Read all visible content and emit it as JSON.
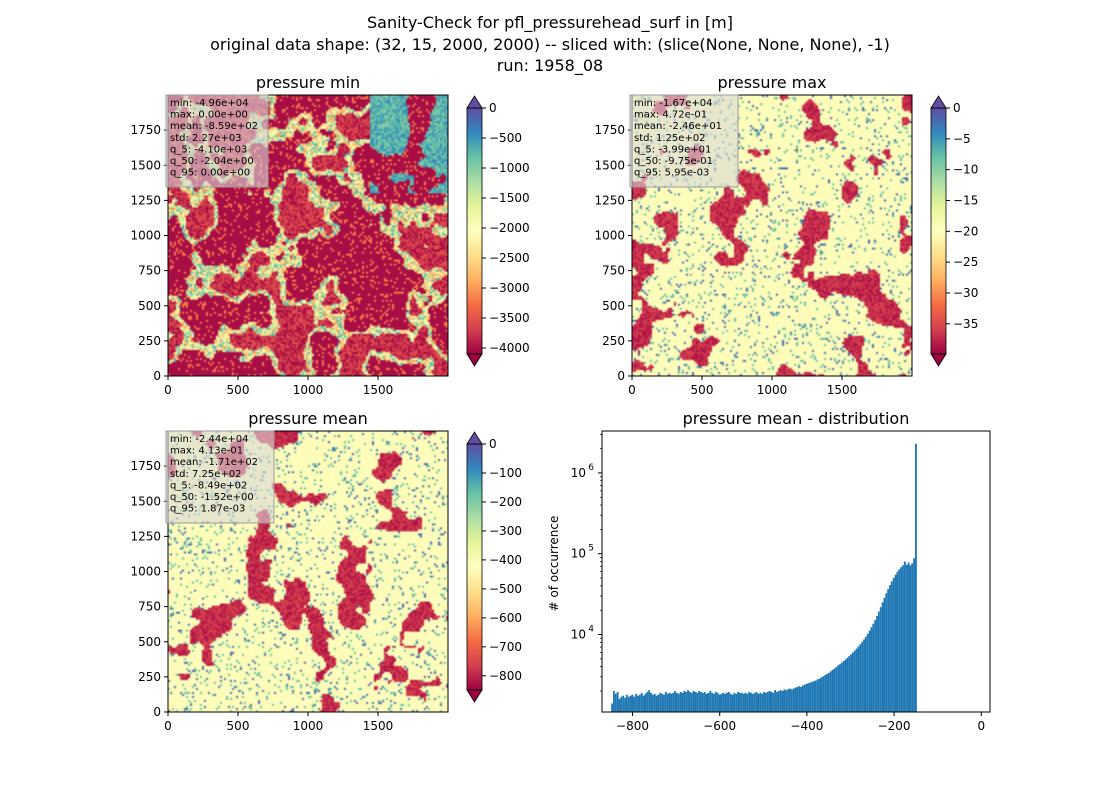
{
  "figure": {
    "title_lines": [
      "Sanity-Check for pfl_pressurehead_surf in [m]",
      "original data shape: (32, 15, 2000, 2000) -- sliced with: (slice(None, None, None), -1)",
      "run: 1958_08"
    ]
  },
  "colors": {
    "spectral_ramp": [
      "#9e0142",
      "#d53e4f",
      "#f46d43",
      "#fdae61",
      "#fee08b",
      "#ffffbf",
      "#e6f598",
      "#abdda4",
      "#66c2a5",
      "#3288bd",
      "#5e4fa2"
    ],
    "hist_bar": "#1f77b4",
    "stats_box_bg": "#d9d9d9"
  },
  "chart_data": [
    {
      "type": "heatmap",
      "title": "pressure min",
      "xlim": [
        0,
        2000
      ],
      "ylim": [
        0,
        2000
      ],
      "xticks": [
        "0",
        "500",
        "1000",
        "1500"
      ],
      "yticks": [
        "0",
        "250",
        "500",
        "750",
        "1000",
        "1250",
        "1500",
        "1750"
      ],
      "colorbar": {
        "range": [
          -4100,
          0
        ],
        "extend": "both",
        "ticks": [
          "0",
          "−500",
          "−1000",
          "−1500",
          "−2000",
          "−2500",
          "−3000",
          "−3500",
          "−4000"
        ]
      },
      "dominant_level": 0.02,
      "stats": [
        "min: -4.96e+04",
        "max: 0.00e+00",
        "mean: -8.59e+02",
        "std: 2.27e+03",
        "q_5: -4.10e+03",
        "q_50: -2.04e+00",
        "q_95: 0.00e+00"
      ]
    },
    {
      "type": "heatmap",
      "title": "pressure max",
      "xlim": [
        0,
        2000
      ],
      "ylim": [
        0,
        2000
      ],
      "xticks": [
        "0",
        "500",
        "1000",
        "1500"
      ],
      "yticks": [
        "0",
        "250",
        "500",
        "750",
        "1000",
        "1250",
        "1500",
        "1750"
      ],
      "colorbar": {
        "range": [
          -39.9,
          0
        ],
        "extend": "both",
        "ticks": [
          "0",
          "−5",
          "−10",
          "−15",
          "−20",
          "−25",
          "−30",
          "−35"
        ]
      },
      "dominant_level": 0.5,
      "stats": [
        "min: -1.67e+04",
        "max: 4.72e-01",
        "mean: -2.46e+01",
        "std: 1.25e+02",
        "q_5: -3.99e+01",
        "q_50: -9.75e-01",
        "q_95: 5.95e-03"
      ]
    },
    {
      "type": "heatmap",
      "title": "pressure mean",
      "xlim": [
        0,
        2000
      ],
      "ylim": [
        0,
        2000
      ],
      "xticks": [
        "0",
        "500",
        "1000",
        "1500"
      ],
      "yticks": [
        "0",
        "250",
        "500",
        "750",
        "1000",
        "1250",
        "1500",
        "1750"
      ],
      "colorbar": {
        "range": [
          -849,
          0
        ],
        "extend": "both",
        "ticks": [
          "0",
          "−100",
          "−200",
          "−300",
          "−400",
          "−500",
          "−600",
          "−700",
          "−800"
        ]
      },
      "dominant_level": 0.5,
      "stats": [
        "min: -2.44e+04",
        "max: 4.13e-01",
        "mean: -1.71e+02",
        "std: 7.25e+02",
        "q_5: -8.49e+02",
        "q_50: -1.52e+00",
        "q_95: 1.87e-03"
      ]
    },
    {
      "type": "bar",
      "title": "pressure mean - distribution",
      "ylabel": "# of occurrence",
      "xlabel": "",
      "log_y": true,
      "xlim": [
        -870,
        20
      ],
      "ylim": [
        1100,
        3300000
      ],
      "xticks": [
        {
          "value": -800,
          "label": "−800"
        },
        {
          "value": -600,
          "label": "−600"
        },
        {
          "value": -400,
          "label": "−400"
        },
        {
          "value": -200,
          "label": "−200"
        },
        {
          "value": 0,
          "label": "0"
        }
      ],
      "yticks": [
        {
          "value": 10000,
          "base": "10",
          "exp": "4"
        },
        {
          "value": 100000,
          "base": "10",
          "exp": "5"
        },
        {
          "value": 1000000,
          "base": "10",
          "exp": "6"
        }
      ],
      "bins": {
        "start": -849,
        "width": 4.25,
        "counts": [
          1400,
          2000,
          1850,
          1950,
          1600,
          1700,
          1750,
          1650,
          1800,
          1700,
          1750,
          1800,
          1700,
          1850,
          1750,
          1800,
          1900,
          1750,
          1850,
          1950,
          2050,
          1900,
          1800,
          1850,
          1750,
          1800,
          1900,
          1850,
          1800,
          1950,
          1850,
          1900,
          1850,
          1900,
          2000,
          1900,
          1850,
          1950,
          1900,
          2000,
          1950,
          2050,
          1950,
          1900,
          2000,
          1950,
          1900,
          2000,
          1950,
          1900,
          1950,
          1850,
          1900,
          2000,
          1900,
          1850,
          1950,
          1900,
          1800,
          1850,
          1900,
          1850,
          1900,
          1950,
          1850,
          1800,
          1900,
          1850,
          1950,
          1900,
          1900,
          1850,
          1900,
          1850,
          1950,
          1900,
          1850,
          1900,
          1950,
          1850,
          1900,
          1850,
          1950,
          1900,
          1950,
          2000,
          1950,
          1900,
          2050,
          1950,
          2000,
          2050,
          2000,
          2100,
          2050,
          2100,
          2150,
          2100,
          2150,
          2200,
          2250,
          2300,
          2250,
          2350,
          2400,
          2450,
          2500,
          2550,
          2600,
          2650,
          2700,
          2800,
          2850,
          2950,
          3050,
          3150,
          3250,
          3350,
          3500,
          3650,
          3800,
          3950,
          4150,
          4300,
          4500,
          4700,
          4900,
          5150,
          5400,
          5700,
          6000,
          6350,
          6700,
          7100,
          7600,
          8100,
          8700,
          9400,
          10200,
          11200,
          12300,
          13600,
          15100,
          17000,
          19200,
          21800,
          25000,
          28500,
          32500,
          36500,
          41000,
          45500,
          50000,
          55000,
          60000,
          64000,
          68000,
          72000,
          80000,
          73000,
          78000,
          72000,
          76000,
          88000,
          2300000
        ]
      }
    }
  ]
}
